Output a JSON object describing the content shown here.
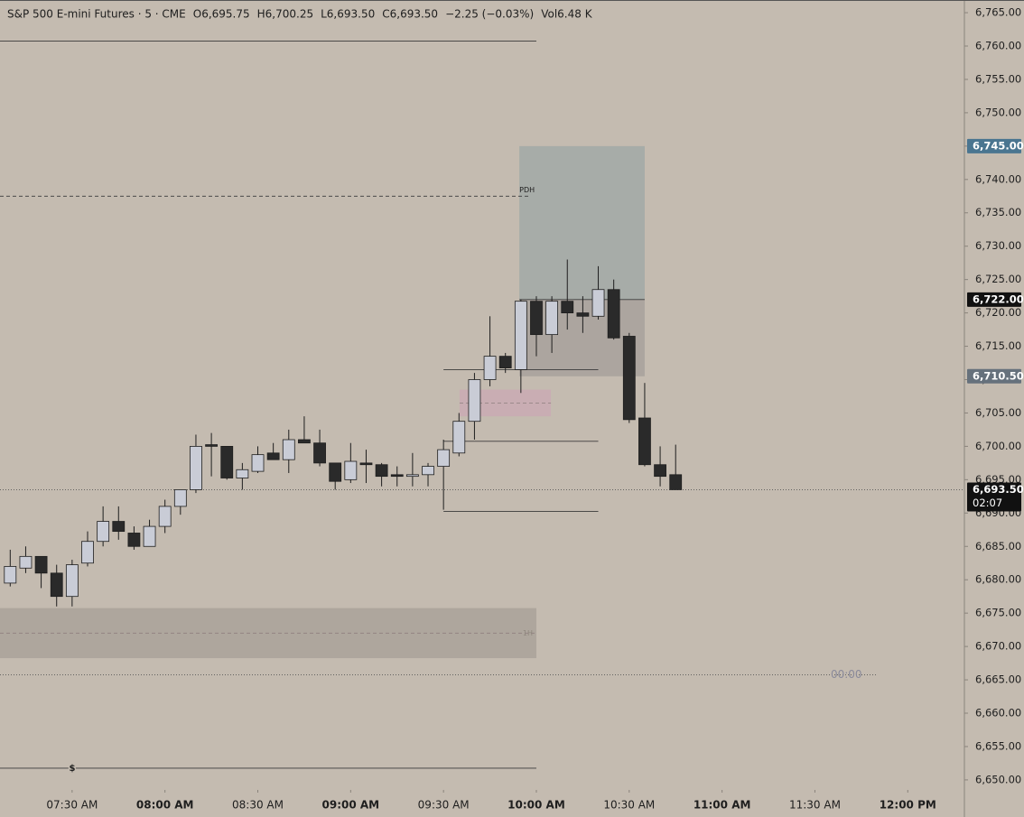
{
  "chart_data": {
    "type": "candlestick",
    "header": [
      "S&P 500 E-mini Futures · 5 · CME",
      "O6,695.75",
      "H6,700.25",
      "L6,693.50",
      "C6,693.50",
      "−2.25 (−0.03%)",
      "Vol6.48 K"
    ],
    "x": [
      430,
      435,
      440,
      445,
      450,
      455,
      460,
      465,
      470,
      475,
      480,
      485,
      490,
      495,
      500,
      505,
      510,
      515,
      520,
      525,
      530,
      535,
      540,
      545,
      550,
      555,
      560,
      565,
      570,
      575,
      580,
      585,
      590,
      595,
      600,
      605,
      610,
      615,
      620,
      625,
      630,
      635,
      640,
      645
    ],
    "open": [
      6679.5,
      6681.75,
      6683.5,
      6681,
      6677.5,
      6682.5,
      6685.75,
      6688.75,
      6687,
      6685,
      6688,
      6691,
      6693.5,
      6700.25,
      6700,
      6695.25,
      6696.25,
      6699,
      6698,
      6701,
      6700.5,
      6697.5,
      6695,
      6697.5,
      6697.25,
      6695.75,
      6695.5,
      6695.75,
      6697,
      6699,
      6703.75,
      6710,
      6713.5,
      6711.5,
      6721.75,
      6716.75,
      6721.75,
      6720,
      6719.5,
      6723.5,
      6716.5,
      6704.25,
      6697.25,
      6695.75
    ],
    "high": [
      6684.5,
      6685,
      6683.5,
      6682.25,
      6683,
      6687.25,
      6691,
      6691,
      6688,
      6689,
      6692,
      6693.5,
      6701.75,
      6702,
      6700,
      6697.5,
      6700,
      6700.5,
      6702.5,
      6704.5,
      6702.5,
      6697.5,
      6700.5,
      6699.5,
      6697.5,
      6697,
      6699,
      6697.5,
      6701,
      6705,
      6711,
      6719.5,
      6714,
      6722,
      6722.5,
      6722.5,
      6728,
      6722.5,
      6727,
      6725,
      6717,
      6709.5,
      6700,
      6700.25
    ],
    "low": [
      6679,
      6681,
      6678.75,
      6676,
      6676,
      6682,
      6685,
      6686,
      6684.5,
      6685,
      6687,
      6689.75,
      6693,
      6695.5,
      6695,
      6693.5,
      6696,
      6698,
      6696,
      6700.5,
      6697,
      6693.5,
      6694.5,
      6694.5,
      6694,
      6694,
      6694,
      6694,
      6690.5,
      6698.5,
      6701,
      6709,
      6711,
      6708,
      6713.5,
      6714,
      6717.5,
      6717,
      6719,
      6716,
      6703.5,
      6697,
      6694,
      6693.5
    ],
    "close": [
      6682,
      6683.5,
      6681,
      6677.5,
      6682.25,
      6685.75,
      6688.75,
      6687.25,
      6685,
      6688,
      6691,
      6693.5,
      6700,
      6700,
      6695.25,
      6696.5,
      6698.75,
      6698,
      6701,
      6700.5,
      6697.5,
      6694.75,
      6697.75,
      6697.25,
      6695.5,
      6695.5,
      6695.75,
      6697,
      6699.5,
      6703.75,
      6710,
      6713.5,
      6711.75,
      6721.75,
      6716.75,
      6721.75,
      6720,
      6719.5,
      6723.5,
      6716.25,
      6704,
      6697.25,
      6695.5,
      6693.5
    ],
    "up_color": "#c9ccd6",
    "down_color": "#2a2a2a",
    "xlim": [
      426.7,
      738.3
    ],
    "ylim": [
      6648.5,
      6766.9
    ],
    "xticks": [
      {
        "value": 450,
        "label": "07:30 AM"
      },
      {
        "value": 480,
        "label": "08:00 AM"
      },
      {
        "value": 510,
        "label": "08:30 AM"
      },
      {
        "value": 540,
        "label": "09:00 AM"
      },
      {
        "value": 570,
        "label": "09:30 AM"
      },
      {
        "value": 600,
        "label": "10:00 AM"
      },
      {
        "value": 630,
        "label": "10:30 AM"
      },
      {
        "value": 660,
        "label": "11:00 AM"
      },
      {
        "value": 690,
        "label": "11:30 AM"
      },
      {
        "value": 720,
        "label": "12:00 PM"
      }
    ],
    "yticks": [
      {
        "value": 6650,
        "label": "6,650.00"
      },
      {
        "value": 6655,
        "label": "6,655.00"
      },
      {
        "value": 6660,
        "label": "6,660.00"
      },
      {
        "value": 6665,
        "label": "6,665.00"
      },
      {
        "value": 6670,
        "label": "6,670.00"
      },
      {
        "value": 6675,
        "label": "6,675.00"
      },
      {
        "value": 6680,
        "label": "6,680.00"
      },
      {
        "value": 6685,
        "label": "6,685.00"
      },
      {
        "value": 6690,
        "label": "6,690.00"
      },
      {
        "value": 6695,
        "label": "6,695.00"
      },
      {
        "value": 6700,
        "label": "6,700.00"
      },
      {
        "value": 6705,
        "label": "6,705.00"
      },
      {
        "value": 6710,
        "label": "6,710.00"
      },
      {
        "value": 6715,
        "label": "6,715.00"
      },
      {
        "value": 6720,
        "label": "6,720.00"
      },
      {
        "value": 6725,
        "label": "6,725.00"
      },
      {
        "value": 6730,
        "label": "6,730.00"
      },
      {
        "value": 6735,
        "label": "6,735.00"
      },
      {
        "value": 6740,
        "label": "6,740.00"
      },
      {
        "value": 6745,
        "label": "6,745.00"
      },
      {
        "value": 6750,
        "label": "6,750.00"
      },
      {
        "value": 6755,
        "label": "6,755.00"
      },
      {
        "value": 6760,
        "label": "6,760.00"
      },
      {
        "value": 6765,
        "label": "6,765.00"
      }
    ],
    "zones": [
      {
        "y": [
          6722,
          6745
        ],
        "x": [
          594.5,
          635
        ],
        "color": "#a7aca8"
      },
      {
        "y": [
          6710.5,
          6722
        ],
        "x": [
          594.5,
          635
        ],
        "color": "#aca59f"
      },
      {
        "y": [
          6704.5,
          6708.5
        ],
        "x": [
          575.2,
          604.7
        ],
        "color": "#c9adb3",
        "mid": 6706.5
      },
      {
        "y": [
          6668.25,
          6675.75
        ],
        "x": [
          426.7,
          600
        ],
        "color": "#aea69d",
        "mid": 6672,
        "label": "1H"
      }
    ],
    "levels": [
      {
        "value": 6760.75,
        "x": [
          426.7,
          600
        ],
        "style": "solid"
      },
      {
        "value": 6737.5,
        "x": [
          426.7,
          598
        ],
        "style": "dashed",
        "label": "PDH"
      },
      {
        "value": 6722,
        "x": [
          594.5,
          635
        ],
        "style": "solid"
      },
      {
        "value": 6711.5,
        "x": [
          570,
          620
        ],
        "style": "solid"
      },
      {
        "value": 6700.75,
        "x": [
          570,
          620
        ],
        "style": "solid"
      },
      {
        "value": 6690.25,
        "x": [
          570,
          620
        ],
        "style": "solid"
      },
      {
        "value": 6693.5,
        "x": [
          426.7,
          738.3
        ],
        "style": "dotted"
      },
      {
        "value": 6665.75,
        "x": [
          426.7,
          709.7
        ],
        "style": "dotted",
        "label": "00:00"
      },
      {
        "value": 6651.75,
        "x": [
          426.7,
          600
        ],
        "style": "solid",
        "label": "$"
      }
    ],
    "price_labels": [
      {
        "value": 6745,
        "label": "6,745.00",
        "color": "#4a7590"
      },
      {
        "value": 6722,
        "label": "6,722.00",
        "color": "#111111"
      },
      {
        "value": 6710.5,
        "label": "6,710.50",
        "color": "#66717c"
      },
      {
        "value": 6693.5,
        "label": "6,693.50",
        "color": "#111111",
        "countdown": "02:07"
      }
    ]
  }
}
